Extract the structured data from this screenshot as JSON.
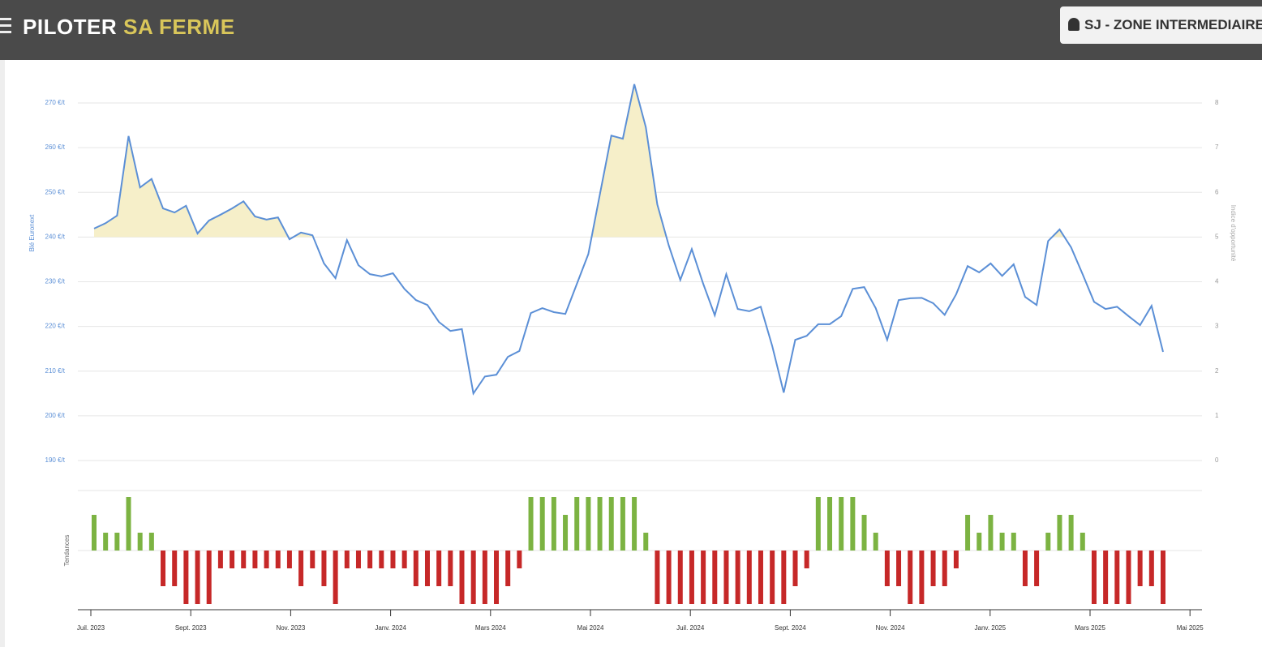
{
  "header": {
    "brand_main": "PILOTER",
    "brand_accent": "SA FERME",
    "user": "SJ - ZONE INTERMEDIAIRE"
  },
  "chart_data": [
    {
      "type": "line",
      "y_label": "Blé Euronext",
      "y2_label": "Indice d'opportunité",
      "ylim": [
        190,
        270
      ],
      "yticks": [
        {
          "value": 190,
          "label": "190 €/t"
        },
        {
          "value": 200,
          "label": "200 €/t"
        },
        {
          "value": 210,
          "label": "210 €/t"
        },
        {
          "value": 220,
          "label": "220 €/t"
        },
        {
          "value": 230,
          "label": "230 €/t"
        },
        {
          "value": 240,
          "label": "240 €/t"
        },
        {
          "value": 250,
          "label": "250 €/t"
        },
        {
          "value": 260,
          "label": "260 €/t"
        },
        {
          "value": 270,
          "label": "270 €/t"
        }
      ],
      "y2lim": [
        0,
        8
      ],
      "y2ticks": [
        0,
        1,
        2,
        3,
        4,
        5,
        6,
        7,
        8
      ],
      "grid": true,
      "highlight_above": 240,
      "highlight_color": "#f6efc9",
      "series": [
        {
          "name": "Blé Euronext",
          "color": "#5b8fd6",
          "values": [
            241.9,
            243.1,
            244.8,
            262.6,
            251.1,
            253,
            246.4,
            245.5,
            247,
            240.8,
            243.7,
            245,
            246.4,
            248,
            244.6,
            243.9,
            244.4,
            239.5,
            241,
            240.4,
            234.1,
            230.8,
            239.3,
            233.7,
            231.7,
            231.2,
            231.9,
            228.4,
            225.9,
            224.8,
            221,
            219,
            219.4,
            205,
            208.8,
            209.2,
            213.2,
            214.5,
            223,
            224.1,
            223.2,
            222.8,
            229.5,
            236.2,
            249.5,
            262.7,
            262,
            274.2,
            264.6,
            247.3,
            238.1,
            230.4,
            237.3,
            229.5,
            222.5,
            231.7,
            223.9,
            223.4,
            224.4,
            215.6,
            205.2,
            217,
            217.9,
            220.5,
            220.5,
            222.3,
            228.4,
            228.8,
            224.1,
            217,
            225.9,
            226.3,
            226.4,
            225.2,
            222.6,
            227.2,
            233.5,
            232.1,
            234.1,
            231.3,
            233.9,
            226.6,
            224.8,
            239.1,
            241.7,
            237.7,
            231.7,
            225.5,
            223.9,
            224.4,
            222.3,
            220.3,
            224.6,
            214.3
          ]
        }
      ]
    },
    {
      "type": "bar",
      "y_label": "Tendances",
      "ylim": [
        -3,
        3
      ],
      "positive_color": "#7cb342",
      "negative_color": "#c62828",
      "x_labels": [
        "Juil. 2023",
        "Sept. 2023",
        "Nov. 2023",
        "Janv. 2024",
        "Mars 2024",
        "Mai 2024",
        "Juil. 2024",
        "Sept. 2024",
        "Nov. 2024",
        "Janv. 2025",
        "Mars 2025",
        "Mai 2025"
      ],
      "values": [
        2,
        1,
        1,
        3,
        1,
        1,
        -2,
        -2,
        -3,
        -3,
        -3,
        -1,
        -1,
        -1,
        -1,
        -1,
        -1,
        -1,
        -2,
        -1,
        -2,
        -3,
        -1,
        -1,
        -1,
        -1,
        -1,
        -1,
        -2,
        -2,
        -2,
        -2,
        -3,
        -3,
        -3,
        -3,
        -2,
        -1,
        3,
        3,
        3,
        2,
        3,
        3,
        3,
        3,
        3,
        3,
        1,
        -3,
        -3,
        -3,
        -3,
        -3,
        -3,
        -3,
        -3,
        -3,
        -3,
        -3,
        -3,
        -2,
        -1,
        3,
        3,
        3,
        3,
        2,
        1,
        -2,
        -2,
        -3,
        -3,
        -2,
        -2,
        -1,
        2,
        1,
        2,
        1,
        1,
        -2,
        -2,
        1,
        2,
        2,
        1,
        -3,
        -3,
        -3,
        -3,
        -2,
        -2,
        -3
      ]
    }
  ]
}
